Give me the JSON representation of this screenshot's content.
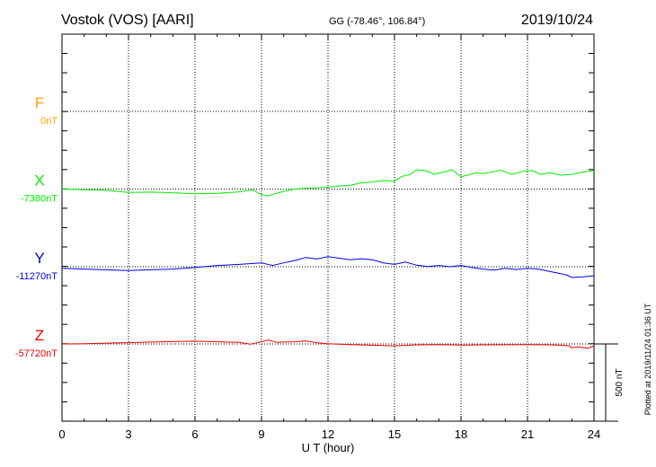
{
  "header": {
    "station": "Vostok (VOS)  [AARI]",
    "coords": "GG (-78.46°, 106.84°)",
    "date": "2019/10/24"
  },
  "plotted_note": "Plotted at 2019/11/24 01:36 UT",
  "chart_data": {
    "type": "line",
    "xlabel": "U T (hour)",
    "xlim": [
      0,
      24
    ],
    "x_ticks": [
      "0",
      "3",
      "6",
      "9",
      "12",
      "15",
      "18",
      "21",
      "24"
    ],
    "scale_bar_label": "500 nT",
    "scale_bar_nT": 500,
    "series": [
      {
        "name": "F",
        "baseline_label": "0nT",
        "baseline_nT": 0,
        "color": "#ffa500",
        "x": [],
        "y": []
      },
      {
        "name": "X",
        "baseline_label": "-7380nT",
        "baseline_nT": -7380,
        "color": "#00ee00",
        "x": [
          0,
          1,
          2,
          3,
          4,
          5,
          6,
          7,
          8,
          8.6,
          9,
          9.3,
          9.6,
          10,
          10.5,
          11,
          11.5,
          12,
          12.5,
          13,
          13.5,
          14,
          14.5,
          15,
          15.3,
          15.7,
          16,
          16.4,
          16.8,
          17.2,
          17.6,
          18,
          18.3,
          18.7,
          19,
          19.4,
          19.8,
          20.3,
          20.8,
          21.2,
          21.6,
          22,
          22.5,
          23,
          23.5,
          24
        ],
        "y": [
          -7380,
          -7384,
          -7388,
          -7402,
          -7400,
          -7404,
          -7410,
          -7408,
          -7398,
          -7385,
          -7416,
          -7425,
          -7410,
          -7395,
          -7380,
          -7375,
          -7372,
          -7368,
          -7360,
          -7355,
          -7340,
          -7335,
          -7325,
          -7330,
          -7300,
          -7285,
          -7255,
          -7260,
          -7285,
          -7270,
          -7255,
          -7300,
          -7290,
          -7275,
          -7280,
          -7270,
          -7258,
          -7285,
          -7265,
          -7260,
          -7285,
          -7275,
          -7290,
          -7285,
          -7270,
          -7260
        ]
      },
      {
        "name": "Y",
        "baseline_label": "-11270nT",
        "baseline_nT": -11270,
        "color": "#0000dd",
        "x": [
          0,
          1,
          2,
          3,
          4,
          5,
          6,
          7,
          8,
          9,
          9.5,
          10,
          10.5,
          11,
          11.5,
          12,
          12.5,
          13,
          13.5,
          14,
          14.5,
          15,
          15.5,
          16,
          16.5,
          17,
          17.5,
          18,
          18.5,
          19,
          19.5,
          20,
          20.5,
          21,
          21.5,
          22,
          22.5,
          22.8,
          23,
          23.5,
          24
        ],
        "y": [
          -11280,
          -11285,
          -11290,
          -11295,
          -11290,
          -11285,
          -11275,
          -11262,
          -11255,
          -11245,
          -11262,
          -11245,
          -11230,
          -11210,
          -11220,
          -11205,
          -11215,
          -11225,
          -11218,
          -11225,
          -11245,
          -11255,
          -11240,
          -11260,
          -11268,
          -11262,
          -11270,
          -11262,
          -11275,
          -11285,
          -11292,
          -11280,
          -11288,
          -11280,
          -11285,
          -11300,
          -11315,
          -11325,
          -11340,
          -11335,
          -11328
        ]
      },
      {
        "name": "Z",
        "baseline_label": "-57720nT",
        "baseline_nT": -57720,
        "color": "#ee0000",
        "x": [
          0,
          1,
          2,
          3,
          4,
          5,
          6,
          7,
          8,
          8.5,
          9,
          9.3,
          9.7,
          10,
          10.5,
          11,
          11.5,
          12,
          12.5,
          13,
          14,
          15,
          16,
          17,
          18,
          19,
          20,
          21,
          22,
          22.5,
          22.9,
          23,
          23.3,
          23.7,
          24
        ],
        "y": [
          -57720,
          -57718,
          -57715,
          -57712,
          -57708,
          -57705,
          -57702,
          -57706,
          -57710,
          -57722,
          -57705,
          -57695,
          -57710,
          -57708,
          -57706,
          -57700,
          -57712,
          -57718,
          -57722,
          -57724,
          -57728,
          -57732,
          -57726,
          -57724,
          -57727,
          -57726,
          -57725,
          -57724,
          -57726,
          -57728,
          -57732,
          -57745,
          -57738,
          -57748,
          -57732
        ]
      }
    ]
  }
}
